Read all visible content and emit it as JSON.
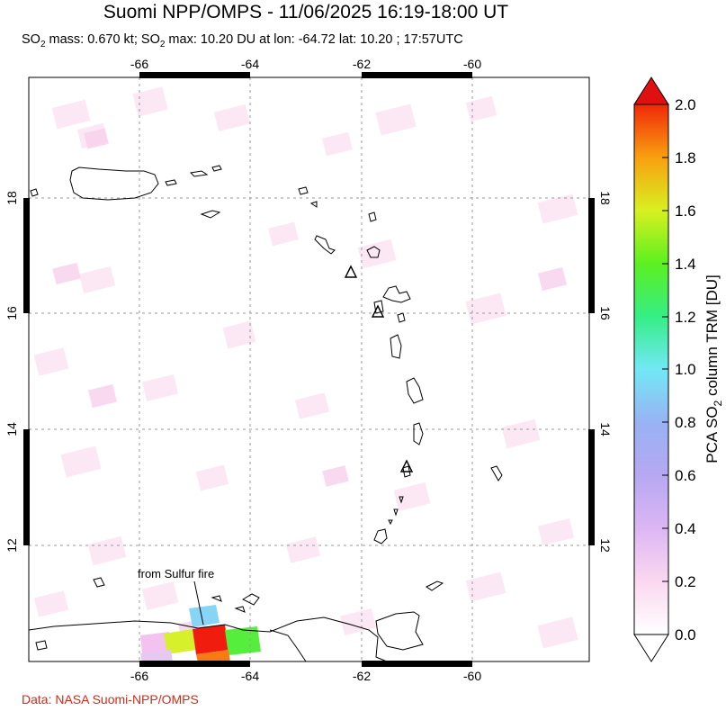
{
  "header": {
    "title": "Suomi NPP/OMPS - 11/06/2025 16:19-18:00 UT",
    "subtitle_parts": {
      "so": "SO",
      "two": "2",
      "mass_text": " mass: 0.670 kt; SO",
      "max_text": " max: 10.20 DU at lon: -64.72 lat: 10.20 ; 17:57UTC"
    }
  },
  "map": {
    "lon_ticks": [
      "-66",
      "-64",
      "-62",
      "-60"
    ],
    "lat_ticks": [
      "18",
      "16",
      "14",
      "12"
    ],
    "annotation": "from Sulfur fire",
    "volcano_marker": "triangle"
  },
  "colorbar": {
    "ticks": [
      "2.0",
      "1.8",
      "1.6",
      "1.4",
      "1.2",
      "1.0",
      "0.8",
      "0.6",
      "0.4",
      "0.2",
      "0.0"
    ],
    "label_prefix": "PCA SO",
    "label_sub": "2",
    "label_suffix": " column TRM [DU]",
    "colors": [
      "#ffffff",
      "#fbd8f0",
      "#dcb6f4",
      "#9aa6f2",
      "#72e8f6",
      "#35ee84",
      "#5cf020",
      "#d8f020",
      "#f8a010",
      "#f02808",
      "#e01010"
    ]
  },
  "footer": {
    "credit": "Data: NASA Suomi-NPP/OMPS",
    "credit_color": "#d42a16"
  }
}
